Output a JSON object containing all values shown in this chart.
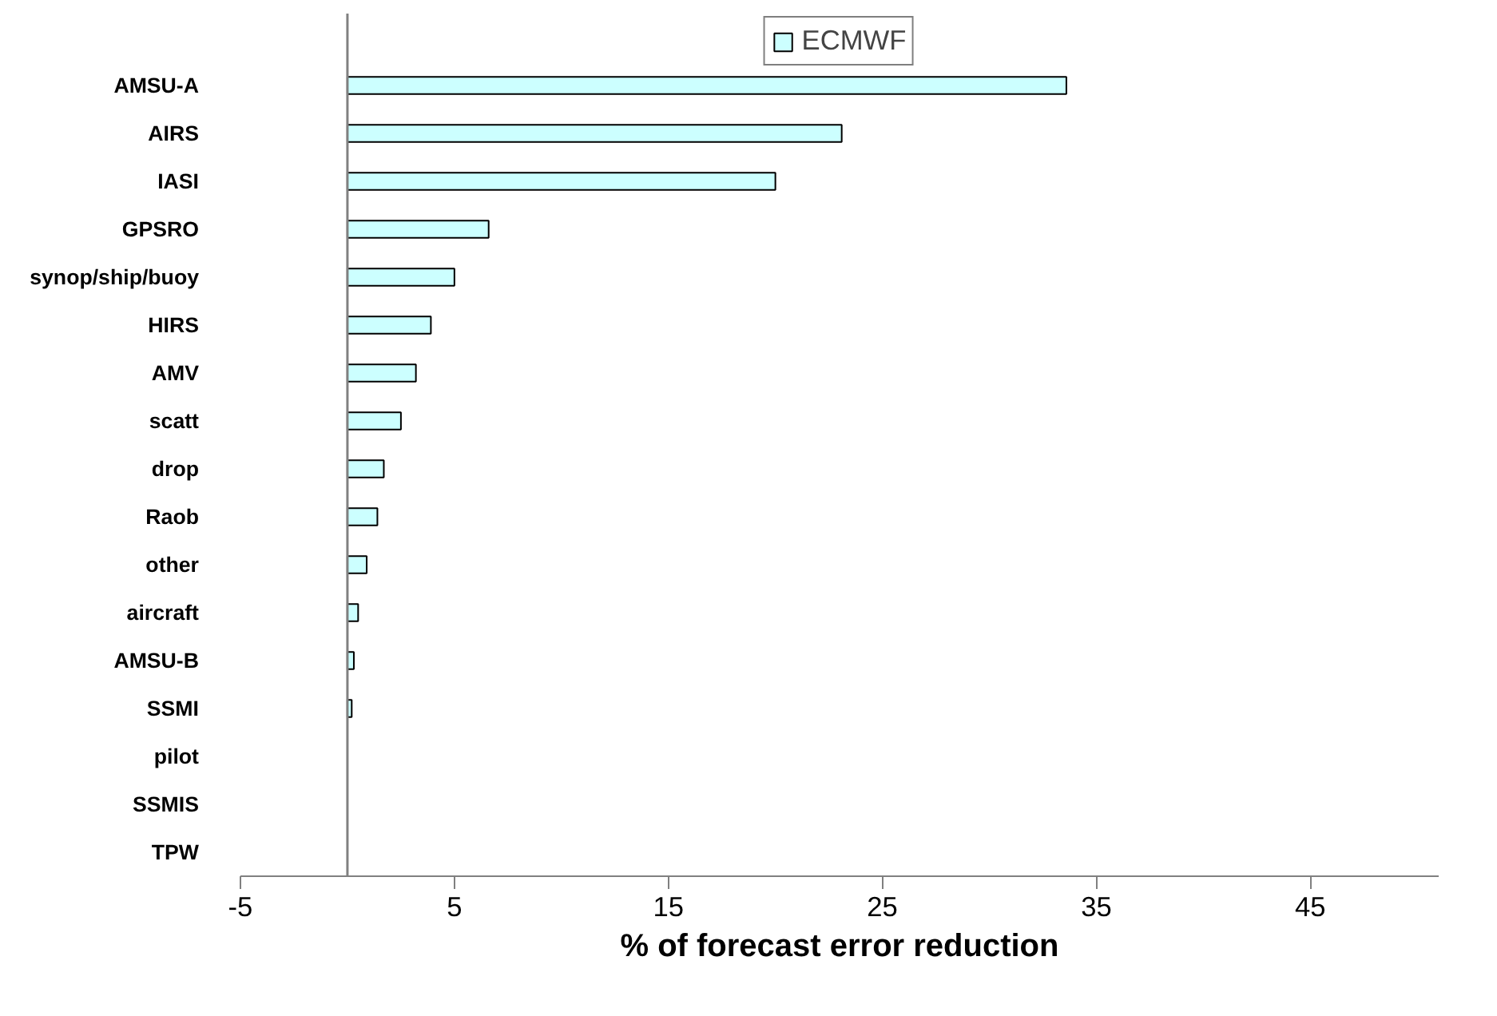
{
  "chart_data": {
    "type": "bar",
    "orientation": "horizontal",
    "xlabel": "% of forecast error reduction",
    "categories": [
      "AMSU-A",
      "AIRS",
      "IASI",
      "GPSRO",
      "synop/ship/buoy",
      "HIRS",
      "AMV",
      "scatt",
      "drop",
      "Raob",
      "other",
      "aircraft",
      "AMSU-B",
      "SSMI",
      "pilot",
      "SSMIS",
      "TPW"
    ],
    "series": [
      {
        "name": "ECMWF",
        "color": "#ccffff",
        "values": [
          33.6,
          23.1,
          20.0,
          6.6,
          5.0,
          3.9,
          3.2,
          2.5,
          1.7,
          1.4,
          0.9,
          0.5,
          0.3,
          0.2,
          0,
          0,
          0
        ]
      }
    ],
    "xlim": [
      -5,
      51
    ],
    "xticks": [
      -5,
      5,
      15,
      25,
      35,
      45
    ],
    "grid": false,
    "legend": "top"
  }
}
